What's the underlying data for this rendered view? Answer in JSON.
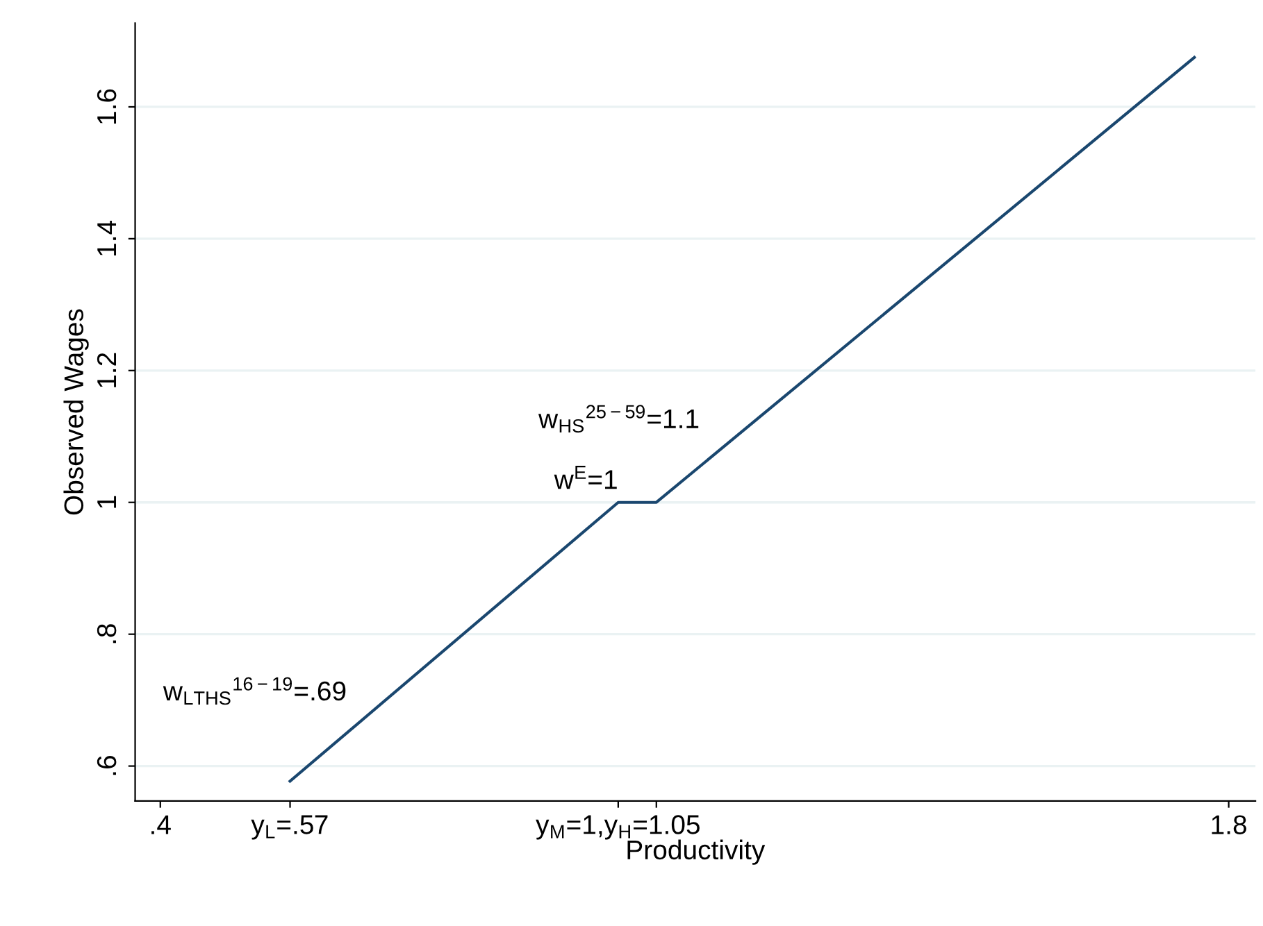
{
  "chart_data": {
    "type": "line",
    "xlabel": "Productivity",
    "ylabel": "Observed Wages",
    "x": [
      0.57,
      1,
      1.05,
      1.755
    ],
    "series": [
      {
        "color": "#1a476f",
        "values": [
          0.577,
          1,
          1,
          1.675
        ]
      }
    ],
    "xlim": [
      0.367,
      1.835
    ],
    "ylim": [
      0.547,
      1.727
    ],
    "xticks": [
      {
        "value": 0.4,
        "label": ".4"
      },
      {
        "value": 0.57,
        "label": "y$_{L}$=.57"
      },
      {
        "value": 1,
        "label": "y$_{M}$=1,y$_{H}$=1.05"
      },
      {
        "value": 1.05,
        "label": null
      },
      1.8
    ],
    "yticks": [
      {
        "value": 0.6,
        "label": ".6"
      },
      {
        "value": 0.8,
        "label": ".8"
      },
      1,
      1.2,
      1.4,
      1.6
    ],
    "grid": "y",
    "marker": "none",
    "line_style": "solid",
    "annotations": [
      "w$_{LTHS}$$^{16−19}$=.69",
      {
        "text": "w$^{E}$=1",
        "x": 1,
        "y": 1
      },
      "w$_{HS}$$^{25−59}$=1.1"
    ]
  }
}
